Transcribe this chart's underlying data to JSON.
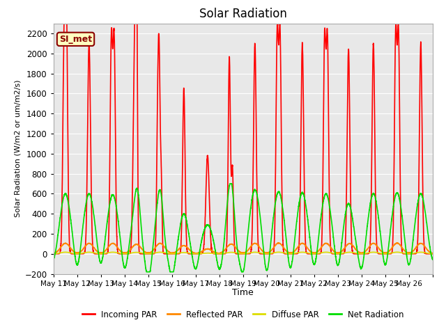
{
  "title": "Solar Radiation",
  "ylabel": "Solar Radiation (W/m2 or um/m2/s)",
  "xlabel": "Time",
  "ylim": [
    -200,
    2300
  ],
  "yticks": [
    -200,
    0,
    200,
    400,
    600,
    800,
    1000,
    1200,
    1400,
    1600,
    1800,
    2000,
    2200
  ],
  "label_box": "SI_met",
  "label_box_bg": "#ffffc0",
  "label_box_border": "#8b0000",
  "plot_bg": "#e8e8e8",
  "fig_bg": "#ffffff",
  "series": {
    "incoming_par": {
      "color": "#ff0000",
      "label": "Incoming PAR",
      "linewidth": 1.2
    },
    "reflected_par": {
      "color": "#ff8800",
      "label": "Reflected PAR",
      "linewidth": 1.2
    },
    "diffuse_par": {
      "color": "#dddd00",
      "label": "Diffuse PAR",
      "linewidth": 1.2
    },
    "net_radiation": {
      "color": "#00dd00",
      "label": "Net Radiation",
      "linewidth": 1.2
    }
  },
  "x_tick_labels": [
    "May 11",
    "May 12",
    "May 13",
    "May 14",
    "May 15",
    "May 16",
    "May 17",
    "May 18",
    "May 19",
    "May 20",
    "May 21",
    "May 22",
    "May 23",
    "May 24",
    "May 25",
    "May 26"
  ],
  "n_days": 16,
  "points_per_day": 288
}
